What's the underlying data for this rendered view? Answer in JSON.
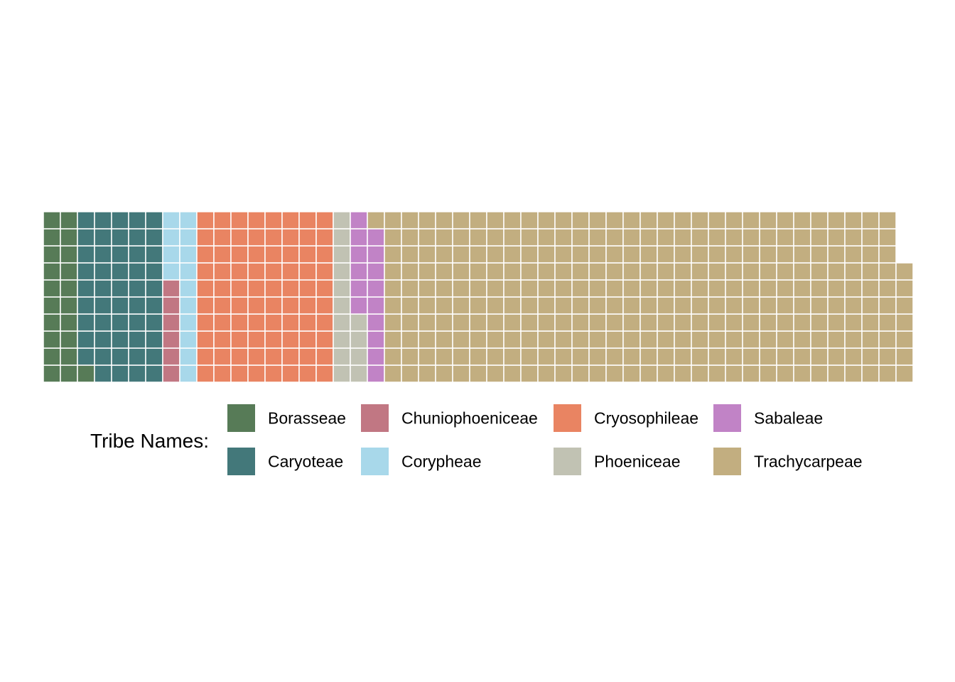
{
  "chart_data": {
    "type": "waffle",
    "fill_order": "column-major, bottom-to-top, left-to-right",
    "rows": 10,
    "legend": {
      "title": "Tribe Names:",
      "position": "bottom",
      "ncol": 4
    },
    "categories": [
      {
        "name": "Borasseae",
        "value": 21,
        "color": "#577B57"
      },
      {
        "name": "Caryoteae",
        "value": 49,
        "color": "#43787A"
      },
      {
        "name": "Chuniophoeniceae",
        "value": 6,
        "color": "#C17783"
      },
      {
        "name": "Corypheae",
        "value": 14,
        "color": "#A8D8EA"
      },
      {
        "name": "Cryosophileae",
        "value": 80,
        "color": "#E98462"
      },
      {
        "name": "Phoeniceae",
        "value": 14,
        "color": "#C1C2B3"
      },
      {
        "name": "Sabaleae",
        "value": 15,
        "color": "#C183C6"
      },
      {
        "name": "Trachycarpeae",
        "value": 308,
        "color": "#C2AE80"
      }
    ]
  }
}
